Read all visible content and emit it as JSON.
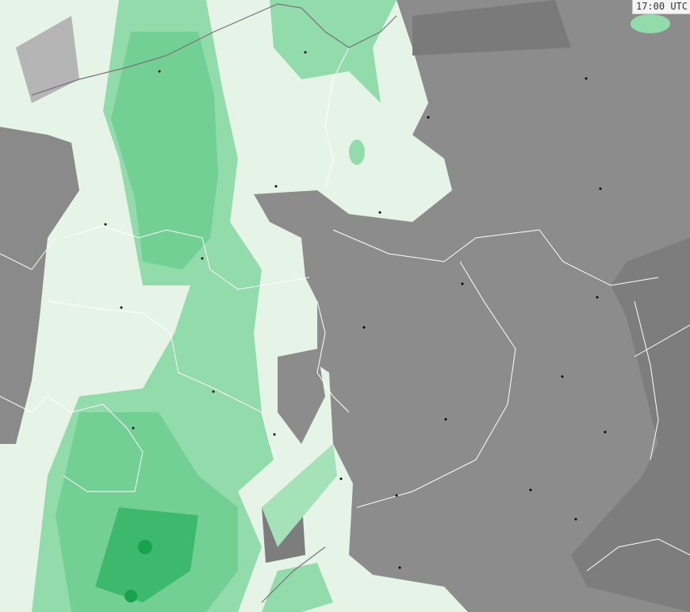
{
  "time_label": "17:00 UTC",
  "colors": {
    "background": "#e6f4e8",
    "cloud_gray": "#8c8c8c",
    "cloud_dark": "#7a7a7a",
    "precip_light": "#92dcab",
    "precip_medium": "#6fcf92",
    "precip_heavy": "#3cb96c",
    "precip_intense": "#17a24e",
    "border": "#ffffff",
    "coast": "#7a6f7a"
  }
}
